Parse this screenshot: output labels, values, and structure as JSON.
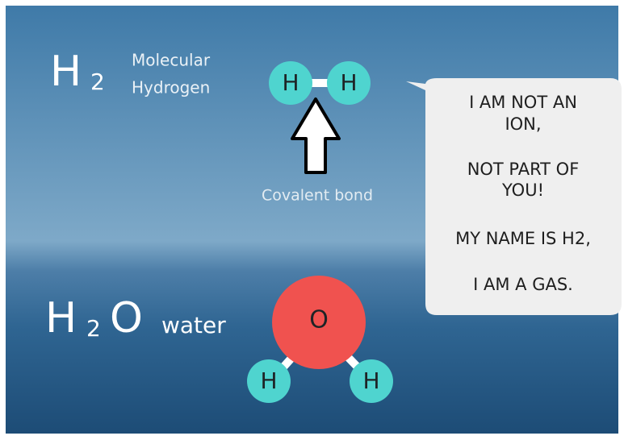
{
  "h2": {
    "formula": {
      "element": "H",
      "subscript": "2"
    },
    "name_lines": [
      "Molecular",
      "Hydrogen"
    ],
    "atoms": [
      "H",
      "H"
    ],
    "bond_label": "Covalent bond"
  },
  "speech": {
    "lines": [
      [
        "I AM NOT AN",
        "ION,"
      ],
      [
        "NOT PART OF",
        "YOU!"
      ],
      [
        "MY NAME IS H2,"
      ],
      [
        "I AM A GAS."
      ]
    ]
  },
  "h2o": {
    "formula": {
      "element": "H",
      "subscript": "2",
      "second": "O"
    },
    "name": "water",
    "atoms": {
      "center": "O",
      "left": "H",
      "right": "H"
    }
  }
}
